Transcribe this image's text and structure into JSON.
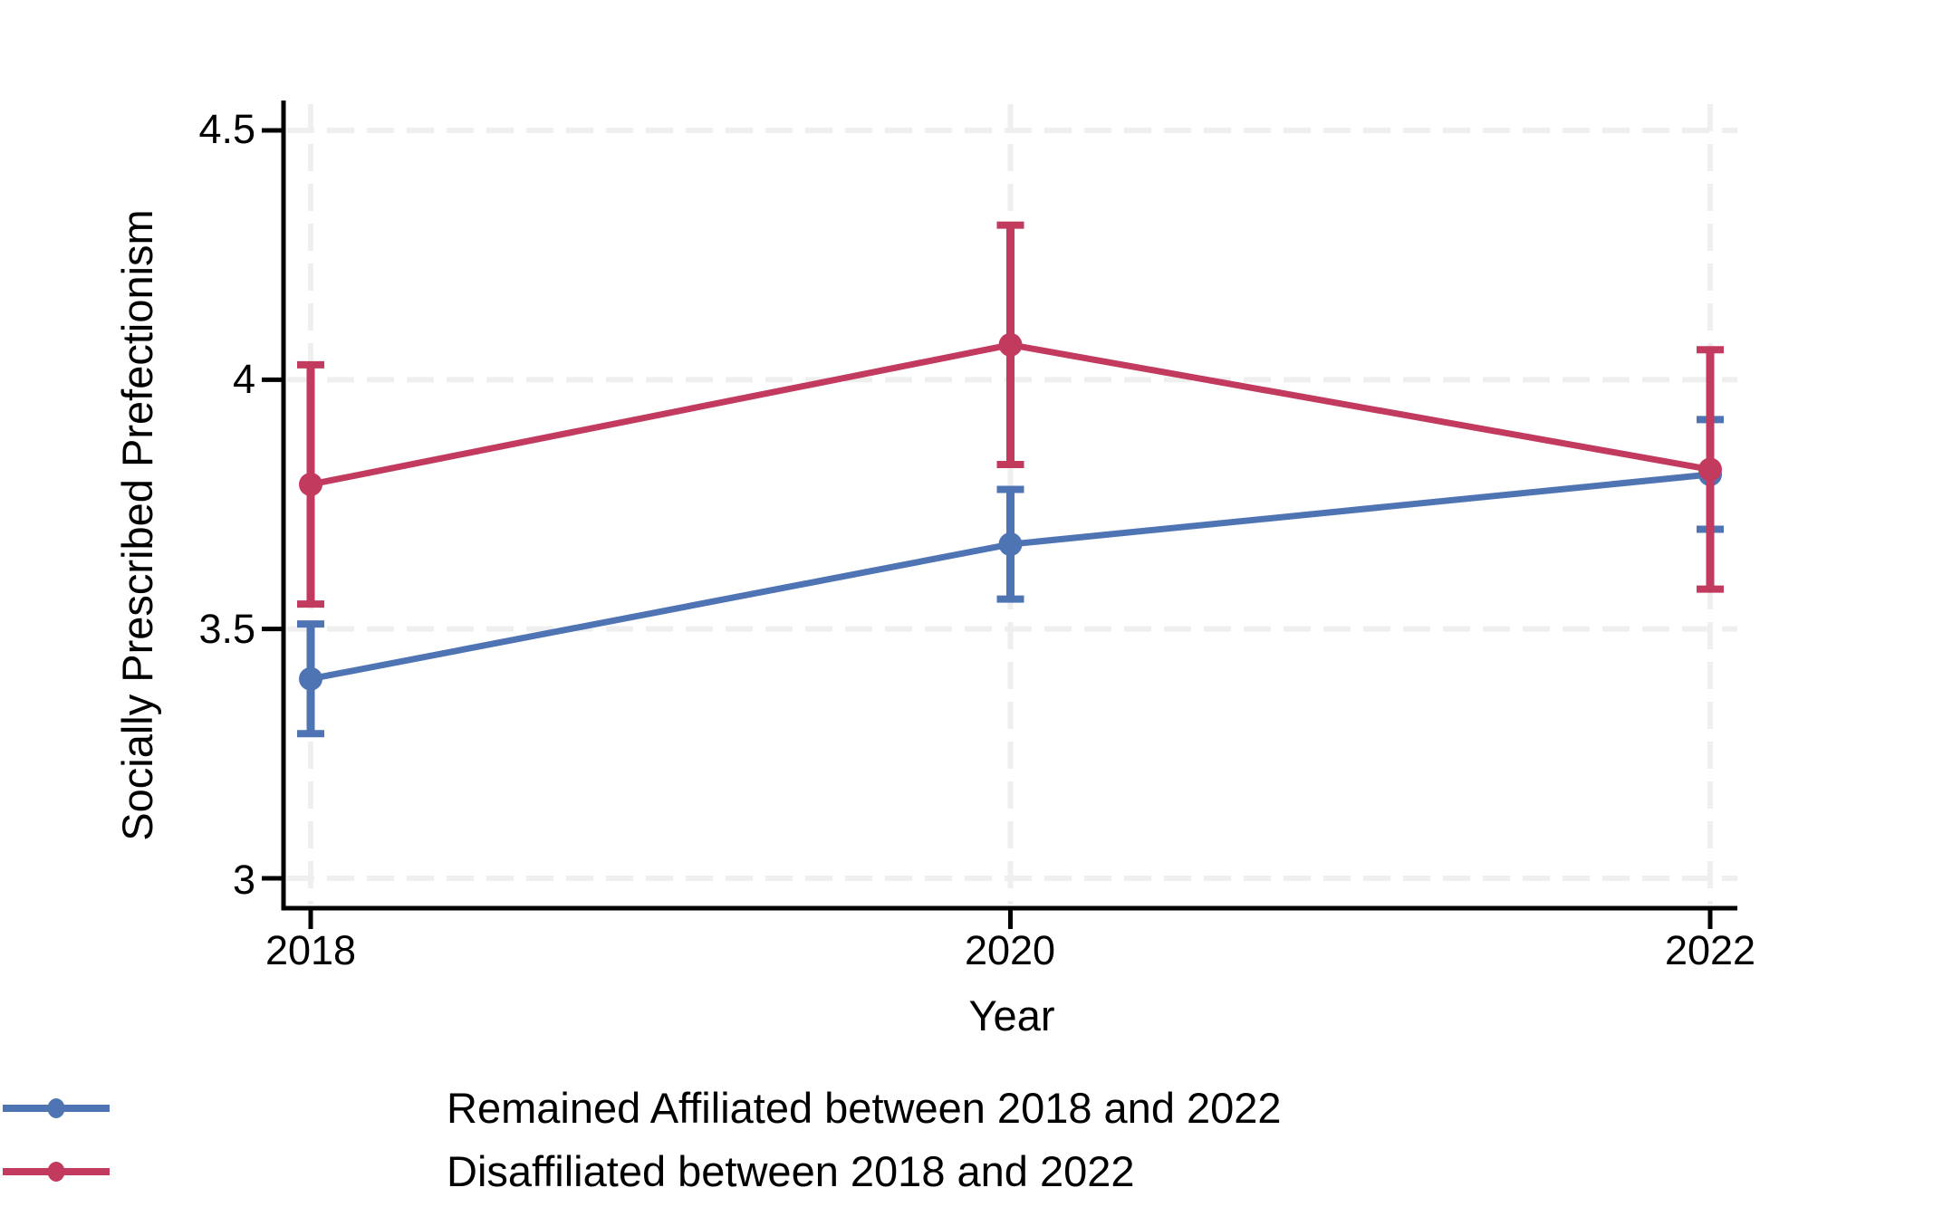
{
  "chart_data": {
    "type": "line",
    "title": "",
    "xlabel": "Year",
    "ylabel": "Socially Prescribed Prefectionism",
    "x": [
      2018,
      2020,
      2022
    ],
    "xtick_labels": [
      "2018",
      "2020",
      "2022"
    ],
    "xlim": [
      2018,
      2022
    ],
    "ytick_values": [
      3,
      3.5,
      4,
      4.5
    ],
    "ytick_labels": [
      "3",
      "3.5",
      "4",
      "4.5"
    ],
    "ylim": [
      2.94,
      4.56
    ],
    "grid": {
      "horizontal": true,
      "vertical": true,
      "style": "dashed",
      "color": "#efefef"
    },
    "error_bars": true,
    "legend_position": "below-plot-left",
    "series": [
      {
        "name": "Remained Affiliated between 2018 and 2022",
        "color": "#4f74b4",
        "values": [
          3.4,
          3.67,
          3.81
        ],
        "ci_low": [
          3.29,
          3.56,
          3.7
        ],
        "ci_high": [
          3.51,
          3.78,
          3.92
        ]
      },
      {
        "name": "Disaffiliated between 2018 and 2022",
        "color": "#c33a5f",
        "values": [
          3.79,
          4.07,
          3.82
        ],
        "ci_low": [
          3.55,
          3.83,
          3.58
        ],
        "ci_high": [
          4.03,
          4.31,
          4.06
        ]
      }
    ]
  }
}
